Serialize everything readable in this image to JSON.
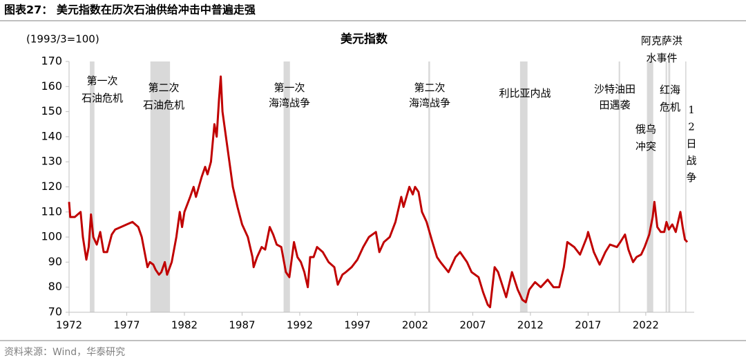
{
  "header": {
    "title": "图表27：  美元指数在历次石油供给冲击中普遍走强"
  },
  "footer": {
    "source": "资料来源：Wind，华泰研究"
  },
  "chart_data": {
    "type": "line",
    "title": "美元指数",
    "y_label": "(1993/3=100)",
    "xlim": [
      1972,
      2026.2
    ],
    "xticks": [
      1972,
      1977,
      1982,
      1987,
      1992,
      1997,
      2002,
      2007,
      2012,
      2017,
      2022
    ],
    "ylim": [
      70,
      170
    ],
    "yticks": [
      70,
      80,
      90,
      100,
      110,
      120,
      130,
      140,
      150,
      160,
      170
    ],
    "band_color": "#d9d9d9",
    "events": [
      {
        "label": [
          "第一次",
          "石油危机"
        ],
        "start": 1973.8,
        "end": 1974.2
      },
      {
        "label": [
          "第二次",
          "石油危机"
        ],
        "start": 1979.05,
        "end": 1980.75
      },
      {
        "label": [
          "第一次",
          "海湾战争"
        ],
        "start": 1990.6,
        "end": 1991.15
      },
      {
        "label": [
          "第二次",
          "海湾战争"
        ],
        "start": 2003.15,
        "end": 2003.3
      },
      {
        "label": [
          "利比亚内战"
        ],
        "start": 2011.1,
        "end": 2011.75
      },
      {
        "label": [
          "沙特油田",
          "田遇袭"
        ],
        "start": 2019.65,
        "end": 2019.78
      },
      {
        "label": [
          "阿克萨洪",
          "水事件"
        ],
        "start": 2023.72,
        "end": 2023.85
      },
      {
        "label": [
          "红海",
          "危机"
        ],
        "start": 2023.95,
        "end": 2024.12
      },
      {
        "label": [
          "俄乌",
          "冲突"
        ],
        "start": 2022.1,
        "end": 2022.65
      },
      {
        "label": [
          "1",
          "2",
          "日",
          "战",
          "争"
        ],
        "start": 2025.42,
        "end": 2025.52
      }
    ],
    "series": [
      {
        "color": "#c00000",
        "x": [
          1972.0,
          1972.1,
          1972.5,
          1973.0,
          1973.2,
          1973.5,
          1973.7,
          1973.9,
          1974.1,
          1974.4,
          1974.7,
          1975.0,
          1975.3,
          1975.7,
          1976.0,
          1976.5,
          1977.0,
          1977.5,
          1978.0,
          1978.3,
          1978.8,
          1979.0,
          1979.3,
          1979.5,
          1979.8,
          1980.0,
          1980.3,
          1980.5,
          1980.9,
          1981.3,
          1981.6,
          1981.8,
          1982.0,
          1982.5,
          1982.8,
          1983.0,
          1983.5,
          1983.8,
          1984.0,
          1984.3,
          1984.6,
          1984.8,
          1985.0,
          1985.15,
          1985.3,
          1985.6,
          1985.9,
          1986.2,
          1986.6,
          1987.0,
          1987.5,
          1987.9,
          1988.0,
          1988.3,
          1988.7,
          1989.0,
          1989.4,
          1989.7,
          1990.0,
          1990.4,
          1990.8,
          1991.1,
          1991.5,
          1991.8,
          1992.1,
          1992.4,
          1992.7,
          1992.9,
          1993.2,
          1993.5,
          1994.0,
          1994.5,
          1995.0,
          1995.3,
          1995.7,
          1996.0,
          1996.5,
          1997.0,
          1997.5,
          1998.0,
          1998.6,
          1998.9,
          1999.3,
          1999.8,
          2000.3,
          2000.8,
          2001.0,
          2001.5,
          2001.8,
          2002.0,
          2002.3,
          2002.6,
          2003.0,
          2003.5,
          2003.9,
          2004.2,
          2004.9,
          2005.5,
          2005.9,
          2006.5,
          2006.9,
          2007.5,
          2007.9,
          2008.3,
          2008.5,
          2008.9,
          2009.2,
          2009.9,
          2010.4,
          2010.9,
          2011.3,
          2011.6,
          2011.9,
          2012.4,
          2012.9,
          2013.5,
          2014.0,
          2014.5,
          2014.9,
          2015.2,
          2015.8,
          2016.3,
          2016.9,
          2017.0,
          2017.5,
          2018.0,
          2018.5,
          2018.9,
          2019.5,
          2019.8,
          2020.2,
          2020.5,
          2020.9,
          2021.2,
          2021.6,
          2021.9,
          2022.3,
          2022.6,
          2022.75,
          2023.0,
          2023.3,
          2023.6,
          2023.8,
          2024.0,
          2024.3,
          2024.6,
          2024.9,
          2025.0,
          2025.2,
          2025.4,
          2025.6
        ],
        "values": [
          114,
          108,
          108,
          110,
          100,
          91,
          96,
          109,
          100,
          97,
          102,
          94,
          94,
          101,
          103,
          104,
          105,
          106,
          104,
          100,
          88,
          90,
          89,
          87,
          85,
          86,
          90,
          85,
          90,
          100,
          110,
          104,
          110,
          116,
          120,
          116,
          124,
          128,
          125,
          130,
          145,
          140,
          155,
          164,
          150,
          140,
          130,
          120,
          112,
          105,
          100,
          92,
          88,
          92,
          96,
          95,
          104,
          101,
          97,
          96,
          86,
          84,
          98,
          92,
          90,
          86,
          80,
          92,
          92,
          96,
          94,
          90,
          88,
          81,
          85,
          86,
          88,
          91,
          96,
          100,
          102,
          94,
          98,
          100,
          106,
          116,
          112,
          120,
          117,
          120,
          118,
          110,
          106,
          98,
          92,
          90,
          86,
          92,
          94,
          90,
          86,
          84,
          78,
          73,
          72,
          88,
          86,
          76,
          86,
          79,
          75,
          74,
          79,
          82,
          80,
          83,
          80,
          80,
          88,
          98,
          96,
          93,
          100,
          102,
          94,
          89,
          94,
          97,
          96,
          98,
          101,
          95,
          90,
          92,
          93,
          96,
          101,
          108,
          114,
          104,
          102,
          102,
          106,
          103,
          105,
          102,
          108,
          110,
          104,
          99,
          98
        ]
      }
    ]
  }
}
